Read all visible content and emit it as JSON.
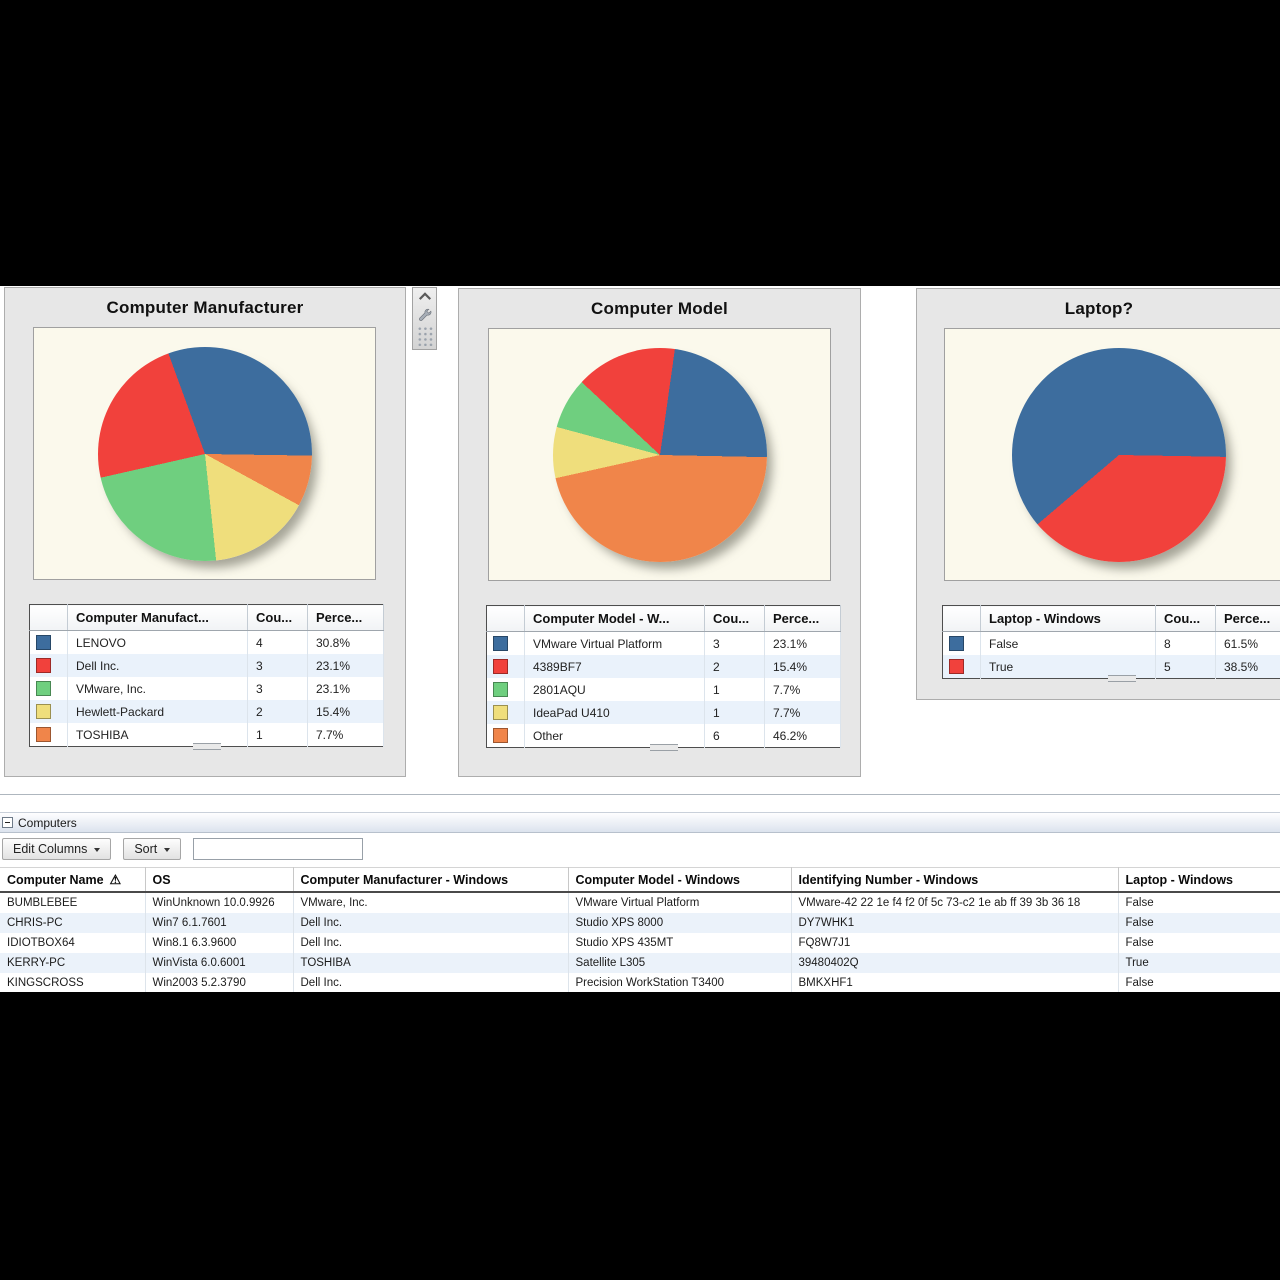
{
  "colors": {
    "pie_blue": "#3D6D9E",
    "pie_red": "#F1413C",
    "pie_green": "#6FCF7F",
    "pie_yellow": "#EFDE7C",
    "pie_orange": "#F0854A",
    "alt_row": "#EBF2FA",
    "name_link": "#5E7A94"
  },
  "icons": {
    "warning": "⚠"
  },
  "chart_data": [
    {
      "type": "pie",
      "title": "Computer Manufacturer",
      "legend_headers": [
        "Computer Manufact...",
        "Cou...",
        "Perce..."
      ],
      "start_angle_deg": -20,
      "clockwise_order": [
        0,
        4,
        3,
        2,
        1
      ],
      "slices": [
        {
          "label": "LENOVO",
          "count": "4",
          "percent": "30.8%",
          "value": 30.8,
          "color": "#3D6D9E"
        },
        {
          "label": "Dell Inc.",
          "count": "3",
          "percent": "23.1%",
          "value": 23.1,
          "color": "#F1413C"
        },
        {
          "label": "VMware, Inc.",
          "count": "3",
          "percent": "23.1%",
          "value": 23.1,
          "color": "#6FCF7F"
        },
        {
          "label": "Hewlett-Packard",
          "count": "2",
          "percent": "15.4%",
          "value": 15.4,
          "color": "#EFDE7C"
        },
        {
          "label": "TOSHIBA",
          "count": "1",
          "percent": "7.7%",
          "value": 7.7,
          "color": "#F0854A"
        }
      ]
    },
    {
      "type": "pie",
      "title": "Computer Model",
      "legend_headers": [
        "Computer Model - W...",
        "Cou...",
        "Perce..."
      ],
      "start_angle_deg": 8,
      "clockwise_order": [
        0,
        4,
        3,
        2,
        1
      ],
      "slices": [
        {
          "label": "VMware Virtual Platform",
          "count": "3",
          "percent": "23.1%",
          "value": 23.1,
          "color": "#3D6D9E"
        },
        {
          "label": "4389BF7",
          "count": "2",
          "percent": "15.4%",
          "value": 15.4,
          "color": "#F1413C"
        },
        {
          "label": "2801AQU",
          "count": "1",
          "percent": "7.7%",
          "value": 7.7,
          "color": "#6FCF7F"
        },
        {
          "label": "IdeaPad U410",
          "count": "1",
          "percent": "7.7%",
          "value": 7.7,
          "color": "#EFDE7C"
        },
        {
          "label": "Other",
          "count": "6",
          "percent": "46.2%",
          "value": 46.2,
          "color": "#F0854A"
        }
      ]
    },
    {
      "type": "pie",
      "title": "Laptop?",
      "legend_headers": [
        "Laptop - Windows",
        "Cou...",
        "Perce..."
      ],
      "start_angle_deg": -130.4,
      "clockwise_order": [
        0,
        1
      ],
      "slices": [
        {
          "label": "False",
          "count": "8",
          "percent": "61.5%",
          "value": 61.5,
          "color": "#3D6D9E"
        },
        {
          "label": "True",
          "count": "5",
          "percent": "38.5%",
          "value": 38.5,
          "color": "#F1413C"
        }
      ]
    }
  ],
  "computers": {
    "section_title": "Computers",
    "toolbar": {
      "edit_columns_label": "Edit Columns",
      "sort_label": "Sort",
      "filter_value": "",
      "filter_placeholder": ""
    },
    "columns": [
      "Computer Name",
      "OS",
      "Computer Manufacturer - Windows",
      "Computer Model - Windows",
      "Identifying Number - Windows",
      "Laptop - Windows"
    ],
    "column_keys": [
      "computer-name",
      "os",
      "manufacturer",
      "model",
      "identifying-number",
      "laptop"
    ],
    "rows": [
      [
        "BUMBLEBEE",
        "WinUnknown 10.0.9926",
        "VMware, Inc.",
        "VMware Virtual Platform",
        "VMware-42 22 1e f4 f2 0f 5c 73-c2 1e ab ff 39 3b 36 18",
        "False"
      ],
      [
        "CHRIS-PC",
        "Win7 6.1.7601",
        "Dell Inc.",
        "Studio XPS 8000",
        "DY7WHK1",
        "False"
      ],
      [
        "IDIOTBOX64",
        "Win8.1 6.3.9600",
        "Dell Inc.",
        "Studio XPS 435MT",
        "FQ8W7J1",
        "False"
      ],
      [
        "KERRY-PC",
        "WinVista 6.0.6001",
        "TOSHIBA",
        "Satellite L305",
        "39480402Q",
        "True"
      ],
      [
        "KINGSCROSS",
        "Win2003 5.2.3790",
        "Dell Inc.",
        "Precision WorkStation T3400",
        "BMKXHF1",
        "False"
      ]
    ]
  }
}
